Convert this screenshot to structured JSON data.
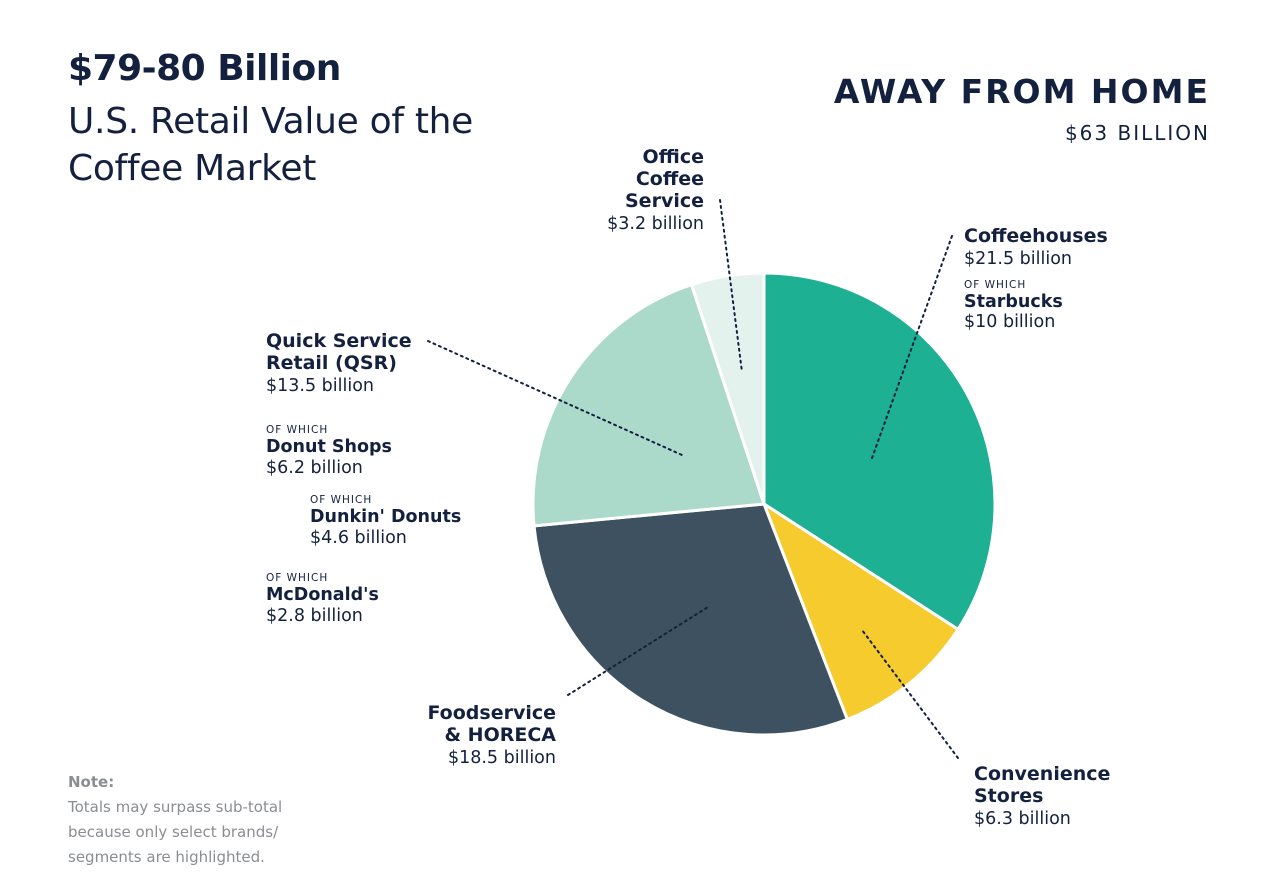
{
  "header": {
    "headline": "$79-80 Billion",
    "subheadline": "U.S. Retail Value of the Coffee Market"
  },
  "section": {
    "title": "AWAY FROM HOME",
    "value": "$63 BILLION"
  },
  "chart_data": {
    "type": "pie",
    "title": "AWAY FROM HOME",
    "subtitle": "$63 BILLION",
    "unit": "billion USD",
    "slices": [
      {
        "label": "Coffeehouses",
        "value": 21.5,
        "value_label": "$21.5 billion",
        "color": "#1db093"
      },
      {
        "label": "Convenience Stores",
        "value": 6.3,
        "value_label": "$6.3 billion",
        "color": "#f5cb2e"
      },
      {
        "label": "Foodservice & HORECA",
        "value": 18.5,
        "value_label": "$18.5 billion",
        "color": "#3e5160"
      },
      {
        "label": "Quick Service Retail (QSR)",
        "value": 13.5,
        "value_label": "$13.5 billion",
        "color": "#abd9ca"
      },
      {
        "label": "Office Coffee Service",
        "value": 3.2,
        "value_label": "$3.2 billion",
        "color": "#e4f2ee"
      }
    ],
    "sub_segments": [
      {
        "parent": "Coffeehouses",
        "prefix": "OF WHICH",
        "label": "Starbucks",
        "value": 10,
        "value_label": "$10 billion"
      },
      {
        "parent": "Quick Service Retail (QSR)",
        "prefix": "OF WHICH",
        "label": "Donut Shops",
        "value": 6.2,
        "value_label": "$6.2 billion"
      },
      {
        "parent": "Donut Shops",
        "prefix": "OF WHICH",
        "label": "Dunkin' Donuts",
        "value": 4.6,
        "value_label": "$4.6 billion"
      },
      {
        "parent": "Quick Service Retail (QSR)",
        "prefix": "OF WHICH",
        "label": "McDonald's",
        "value": 2.8,
        "value_label": "$2.8 billion"
      }
    ]
  },
  "labels": {
    "office": {
      "name_line1": "Office",
      "name_line2": "Coffee",
      "name_line3": "Service",
      "value": "$3.2 billion"
    },
    "coffeehouses": {
      "name": "Coffeehouses",
      "value": "$21.5 billion",
      "of_which": "OF WHICH",
      "sub_name": "Starbucks",
      "sub_value": "$10 billion"
    },
    "qsr": {
      "name_line1": "Quick Service",
      "name_line2": "Retail (QSR)",
      "value": "$13.5 billion"
    },
    "donut": {
      "of_which": "OF WHICH",
      "name": "Donut Shops",
      "value": "$6.2 billion"
    },
    "dunkin": {
      "of_which": "OF WHICH",
      "name": "Dunkin' Donuts",
      "value": "$4.6 billion"
    },
    "mcd": {
      "of_which": "OF WHICH",
      "name": "McDonald's",
      "value": "$2.8 billion"
    },
    "foodservice": {
      "name_line1": "Foodservice",
      "name_line2": "& HORECA",
      "value": "$18.5 billion"
    },
    "convenience": {
      "name_line1": "Convenience",
      "name_line2": "Stores",
      "value": "$6.3 billion"
    }
  },
  "note": {
    "title": "Note:",
    "line1": "Totals may surpass sub-total",
    "line2": "because only select brands/",
    "line3": "segments are highlighted."
  }
}
